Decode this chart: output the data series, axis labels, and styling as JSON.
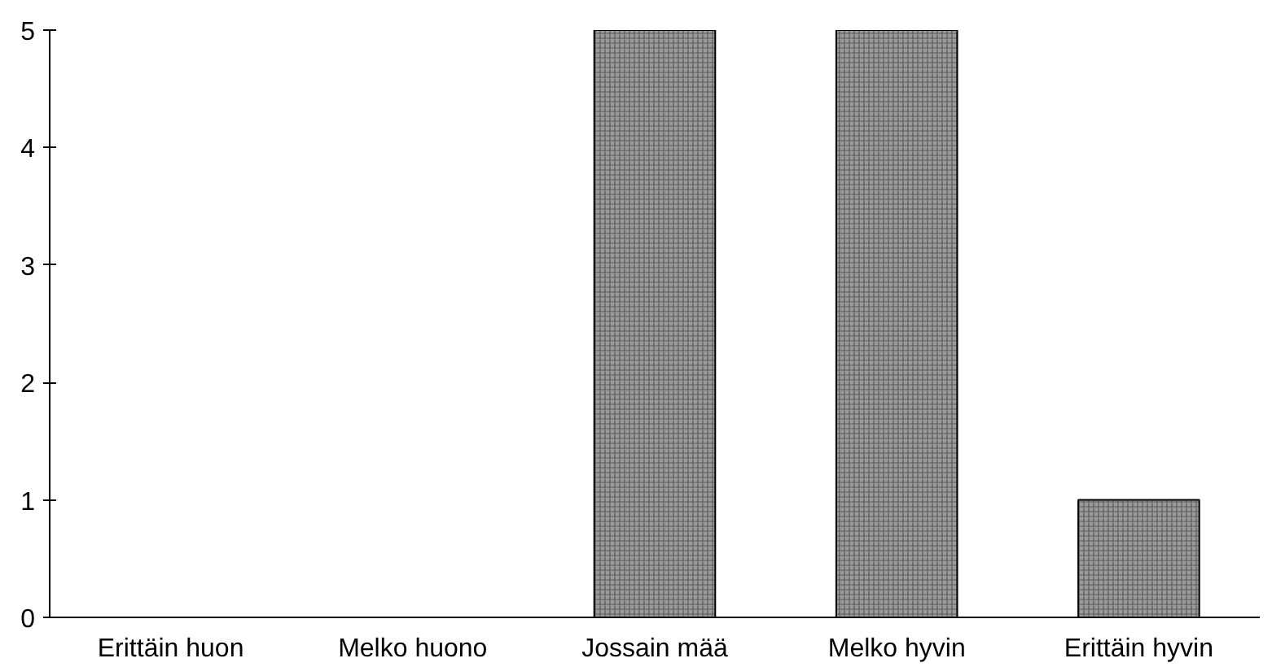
{
  "chart_data": {
    "type": "bar",
    "categories": [
      "Erittäin huon",
      "Melko huono",
      "Jossain mää",
      "Melko hyvin",
      "Erittäin hyvin"
    ],
    "values": [
      0,
      0,
      5,
      5,
      1
    ],
    "color": "#9a9a9a",
    "ylim": [
      0,
      5
    ],
    "yticks": [
      0,
      1,
      2,
      3,
      4,
      5
    ],
    "grid": false
  }
}
